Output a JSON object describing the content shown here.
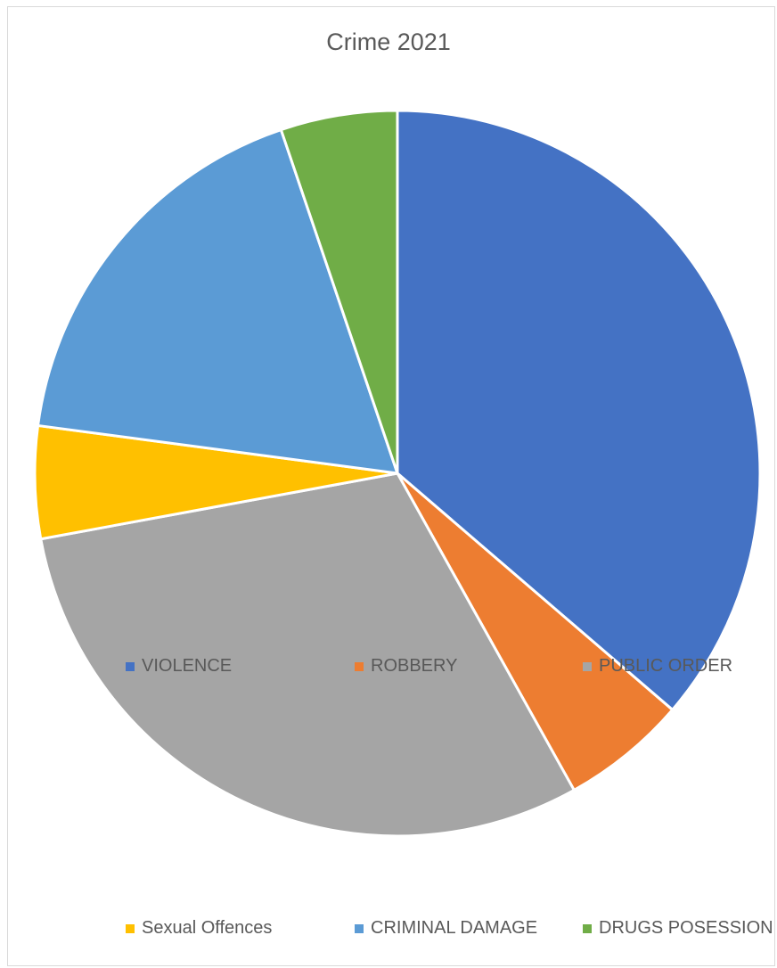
{
  "chart_data": {
    "type": "pie",
    "title": "Crime 2021",
    "legend_position": "bottom",
    "categories": [
      "VIOLENCE",
      "ROBBERY",
      "PUBLIC ORDER",
      "Sexual Offences",
      "CRIMINAL DAMAGE",
      "DRUGS POSESSION"
    ],
    "values": [
      36.3,
      5.6,
      30.2,
      5.0,
      17.7,
      5.2
    ],
    "colors": [
      "#4472c4",
      "#ed7d31",
      "#a5a5a5",
      "#ffc000",
      "#5b9bd5",
      "#70ad47"
    ]
  }
}
